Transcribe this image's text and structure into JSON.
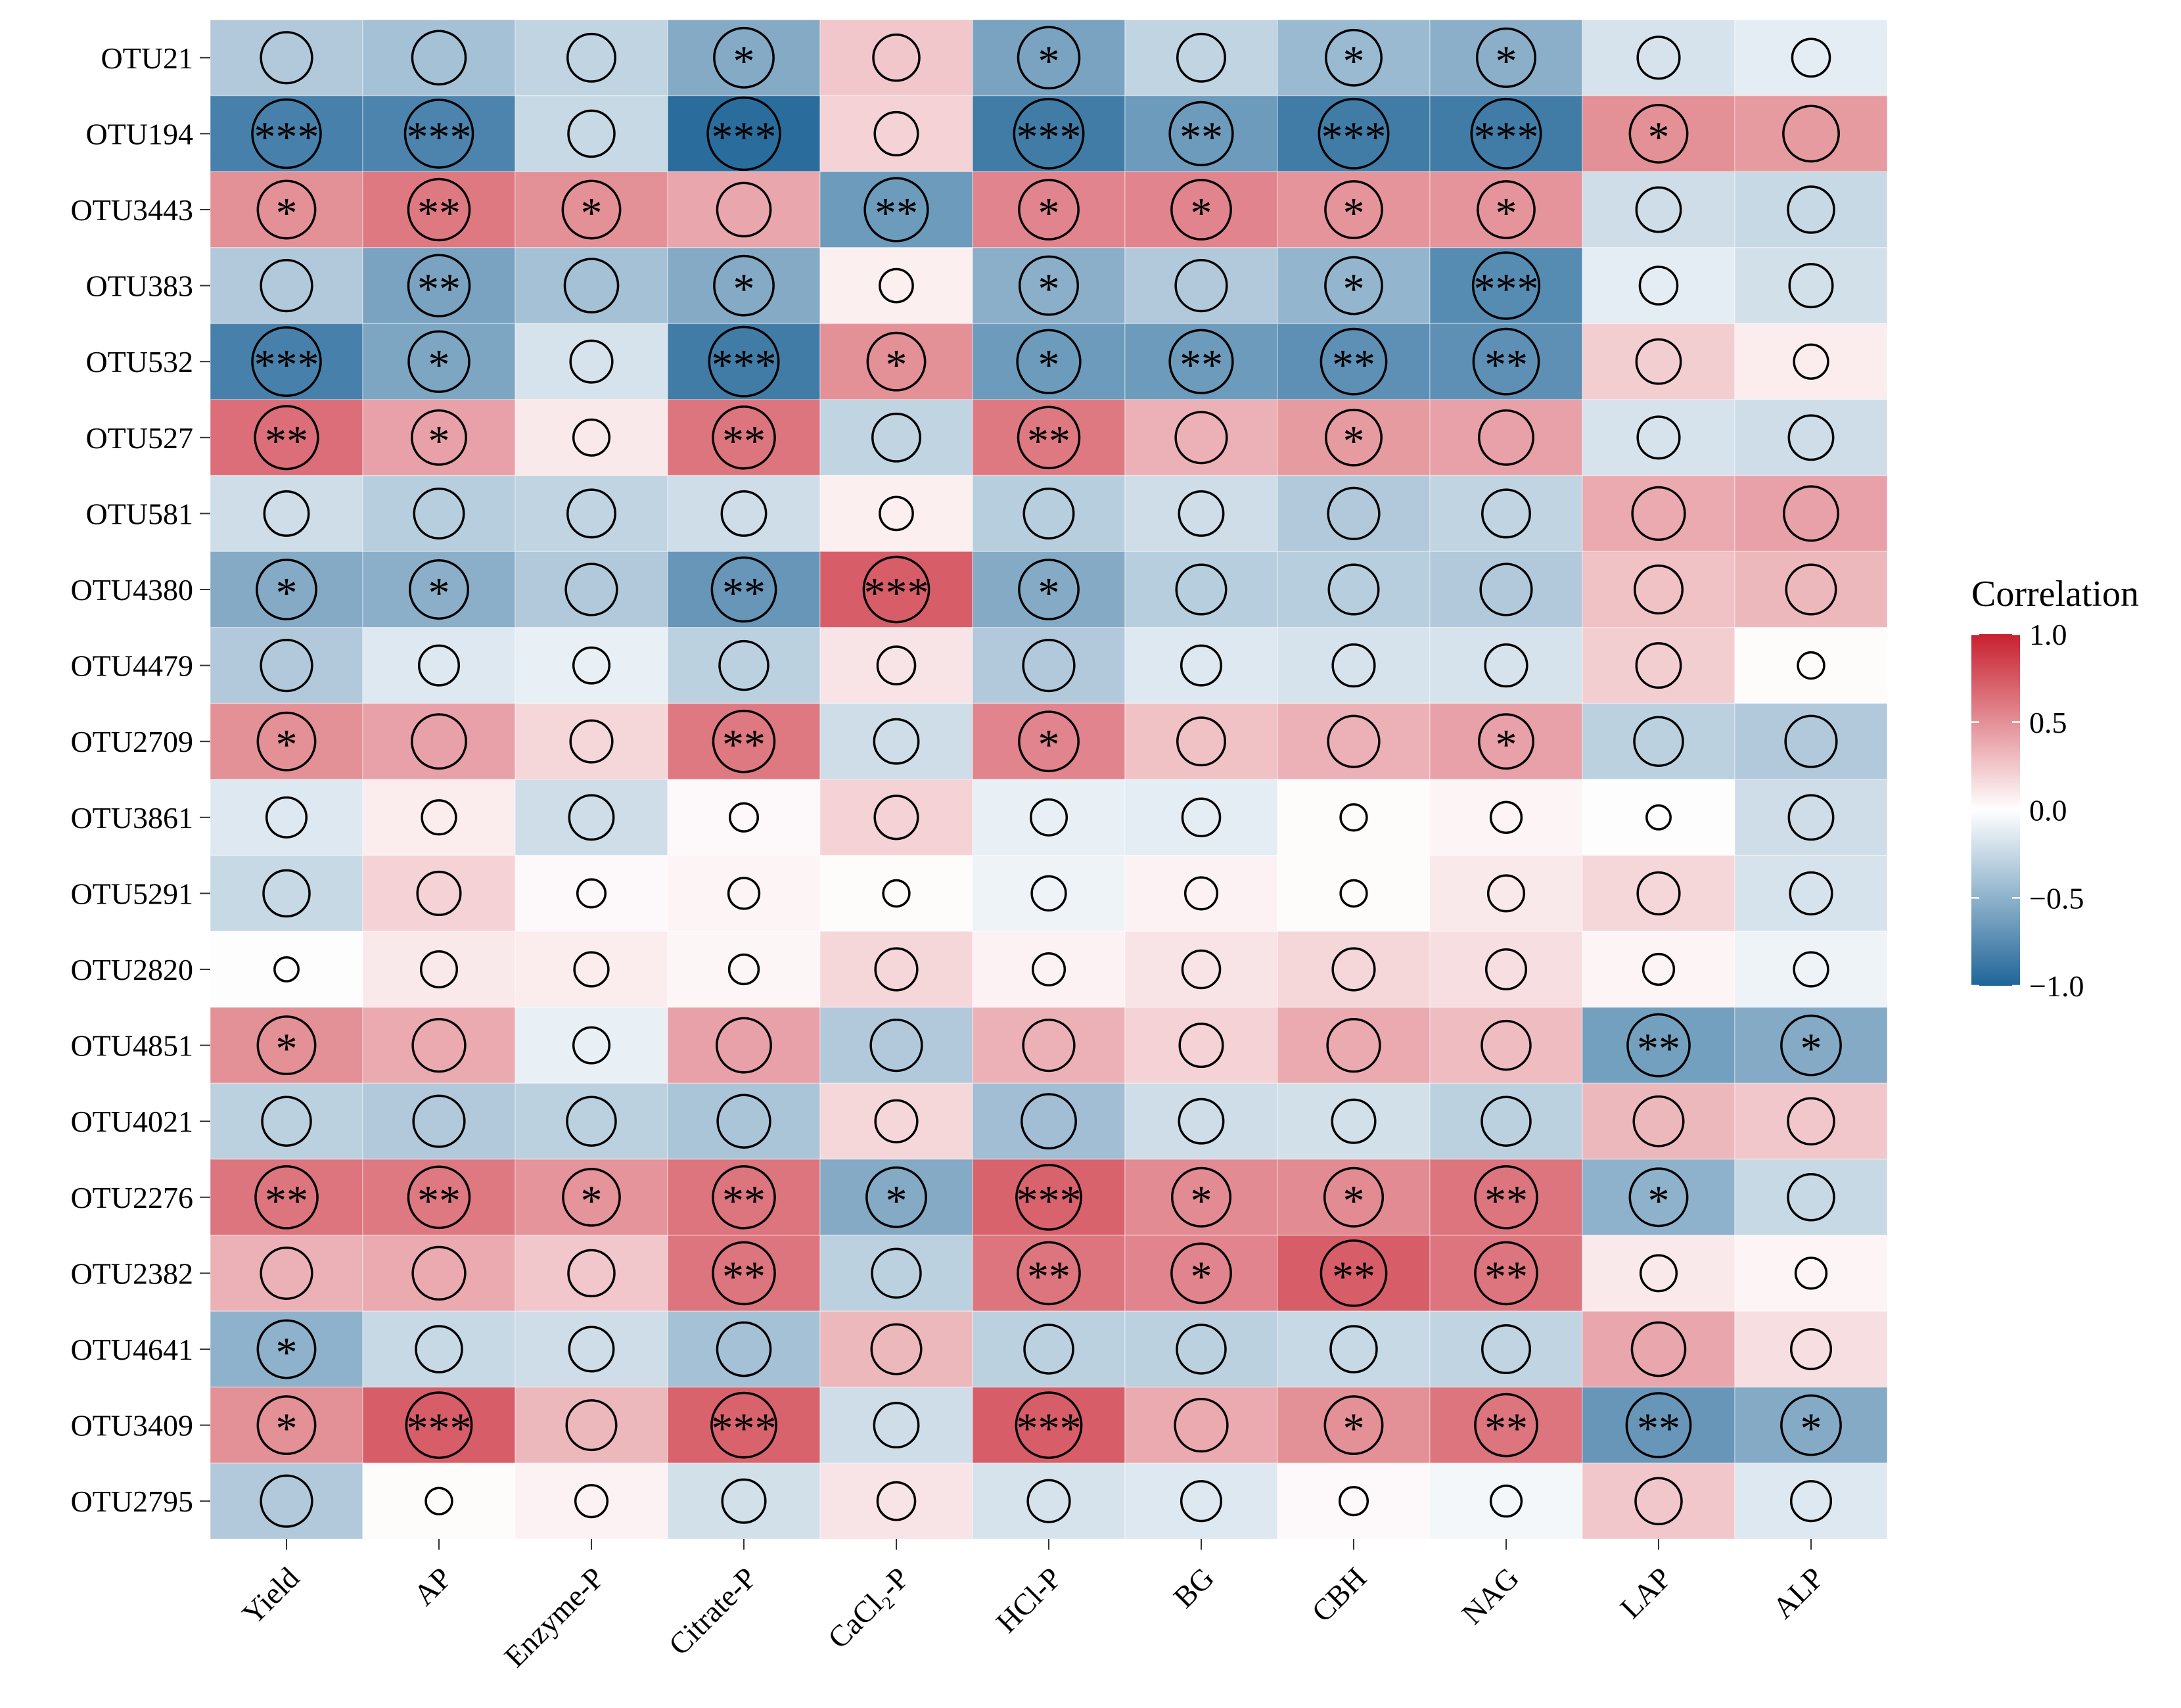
{
  "chart_data": {
    "type": "heatmap",
    "title": "",
    "xlabel": "",
    "ylabel": "",
    "rows": [
      "OTU21",
      "OTU194",
      "OTU3443",
      "OTU383",
      "OTU532",
      "OTU527",
      "OTU581",
      "OTU4380",
      "OTU4479",
      "OTU2709",
      "OTU3861",
      "OTU5291",
      "OTU2820",
      "OTU4851",
      "OTU4021",
      "OTU2276",
      "OTU2382",
      "OTU4641",
      "OTU3409",
      "OTU2795"
    ],
    "columns": [
      "Yield",
      "AP",
      "Enzyme-P",
      "Citrate-P",
      "CaCl₂-P",
      "HCl-P",
      "BG",
      "CBH",
      "NAG",
      "LAP",
      "ALP"
    ],
    "values": [
      [
        -0.35,
        -0.4,
        -0.28,
        -0.55,
        0.25,
        -0.6,
        -0.28,
        -0.45,
        -0.52,
        -0.18,
        -0.12
      ],
      [
        -0.82,
        -0.8,
        -0.25,
        -0.95,
        0.2,
        -0.85,
        -0.65,
        -0.85,
        -0.85,
        0.5,
        0.45
      ],
      [
        0.5,
        0.6,
        0.5,
        0.4,
        -0.65,
        0.55,
        0.55,
        0.48,
        0.48,
        -0.22,
        -0.25
      ],
      [
        -0.35,
        -0.6,
        -0.4,
        -0.55,
        0.07,
        -0.52,
        -0.35,
        -0.48,
        -0.75,
        -0.12,
        -0.2
      ],
      [
        -0.82,
        -0.58,
        -0.18,
        -0.85,
        0.5,
        -0.65,
        -0.65,
        -0.72,
        -0.72,
        0.22,
        0.08
      ],
      [
        0.65,
        0.42,
        0.1,
        0.62,
        -0.28,
        0.6,
        0.35,
        0.45,
        0.42,
        -0.18,
        -0.22
      ],
      [
        -0.22,
        -0.32,
        -0.28,
        -0.22,
        0.07,
        -0.32,
        -0.22,
        -0.35,
        -0.28,
        0.38,
        0.42
      ],
      [
        -0.55,
        -0.52,
        -0.35,
        -0.68,
        0.72,
        -0.55,
        -0.32,
        -0.32,
        -0.35,
        0.28,
        0.32
      ],
      [
        -0.35,
        -0.15,
        -0.1,
        -0.3,
        0.12,
        -0.35,
        -0.15,
        -0.18,
        -0.18,
        0.22,
        0.02
      ],
      [
        0.5,
        0.42,
        0.18,
        0.6,
        -0.22,
        0.55,
        0.28,
        0.35,
        0.42,
        -0.3,
        -0.35
      ],
      [
        -0.15,
        0.08,
        -0.22,
        0.03,
        0.2,
        -0.1,
        -0.12,
        0.02,
        0.05,
        0.01,
        -0.22
      ],
      [
        -0.25,
        0.2,
        0.03,
        0.05,
        0.02,
        -0.08,
        0.06,
        0.02,
        0.1,
        0.18,
        -0.18
      ],
      [
        0.01,
        0.1,
        0.08,
        0.04,
        0.18,
        0.06,
        0.12,
        0.18,
        0.15,
        0.05,
        -0.08
      ],
      [
        0.5,
        0.38,
        -0.1,
        0.42,
        -0.35,
        0.35,
        0.2,
        0.38,
        0.3,
        -0.62,
        -0.55
      ],
      [
        -0.3,
        -0.35,
        -0.3,
        -0.38,
        0.18,
        -0.42,
        -0.22,
        -0.2,
        -0.3,
        0.32,
        0.25
      ],
      [
        0.62,
        0.6,
        0.48,
        0.62,
        -0.55,
        0.7,
        0.52,
        0.52,
        0.62,
        -0.5,
        -0.25
      ],
      [
        0.35,
        0.38,
        0.25,
        0.62,
        -0.3,
        0.62,
        0.55,
        0.72,
        0.62,
        0.1,
        0.05
      ],
      [
        -0.5,
        -0.25,
        -0.22,
        -0.4,
        0.32,
        -0.3,
        -0.3,
        -0.25,
        -0.28,
        0.4,
        0.15
      ],
      [
        0.5,
        0.72,
        0.32,
        0.7,
        -0.22,
        0.72,
        0.38,
        0.5,
        0.62,
        -0.68,
        -0.55
      ],
      [
        -0.35,
        0.02,
        0.06,
        -0.2,
        0.12,
        -0.18,
        -0.15,
        0.03,
        -0.05,
        0.25,
        -0.15
      ]
    ],
    "significance": [
      [
        "",
        "",
        "",
        "*",
        "",
        "*",
        "",
        "*",
        "*",
        "",
        ""
      ],
      [
        "***",
        "***",
        "",
        "***",
        "",
        "***",
        "**",
        "***",
        "***",
        "*",
        ""
      ],
      [
        "*",
        "**",
        "*",
        "",
        "**",
        "*",
        "*",
        "*",
        "*",
        "",
        ""
      ],
      [
        "",
        "**",
        "",
        "*",
        "",
        "*",
        "",
        "*",
        "***",
        "",
        ""
      ],
      [
        "***",
        "*",
        "",
        "***",
        "*",
        "*",
        "**",
        "**",
        "**",
        "",
        ""
      ],
      [
        "**",
        "*",
        "",
        "**",
        "",
        "**",
        "",
        "*",
        "",
        "",
        ""
      ],
      [
        "",
        "",
        "",
        "",
        "",
        "",
        "",
        "",
        "",
        "",
        ""
      ],
      [
        "*",
        "*",
        "",
        "**",
        "***",
        "*",
        "",
        "",
        "",
        "",
        ""
      ],
      [
        "",
        "",
        "",
        "",
        "",
        "",
        "",
        "",
        "",
        "",
        ""
      ],
      [
        "*",
        "",
        "",
        "**",
        "",
        "*",
        "",
        "",
        "*",
        "",
        ""
      ],
      [
        "",
        "",
        "",
        "",
        "",
        "",
        "",
        "",
        "",
        "",
        ""
      ],
      [
        "",
        "",
        "",
        "",
        "",
        "",
        "",
        "",
        "",
        "",
        ""
      ],
      [
        "",
        "",
        "",
        "",
        "",
        "",
        "",
        "",
        "",
        "",
        ""
      ],
      [
        "*",
        "",
        "",
        "",
        "",
        "",
        "",
        "",
        "",
        "**",
        "*"
      ],
      [
        "",
        "",
        "",
        "",
        "",
        "",
        "",
        "",
        "",
        "",
        ""
      ],
      [
        "**",
        "**",
        "*",
        "**",
        "*",
        "***",
        "*",
        "*",
        "**",
        "*",
        ""
      ],
      [
        "",
        "",
        "",
        "**",
        "",
        "**",
        "*",
        "**",
        "**",
        "",
        ""
      ],
      [
        "*",
        "",
        "",
        "",
        "",
        "",
        "",
        "",
        "",
        "",
        ""
      ],
      [
        "*",
        "***",
        "",
        "***",
        "",
        "***",
        "",
        "*",
        "**",
        "**",
        "*"
      ],
      [
        "",
        "",
        "",
        "",
        "",
        "",
        "",
        "",
        "",
        "",
        ""
      ]
    ],
    "legend": {
      "title": "Correlation",
      "ticks": [
        "1.0",
        "0.5",
        "0.0",
        "−0.5",
        "−1.0"
      ],
      "tick_values": [
        1.0,
        0.5,
        0.0,
        -0.5,
        -1.0
      ],
      "range": [
        -1.0,
        1.0
      ],
      "placement": "right",
      "colors": {
        "high": "#c8202f",
        "mid": "#ffffff",
        "low": "#1f6598"
      }
    },
    "grid": false
  }
}
